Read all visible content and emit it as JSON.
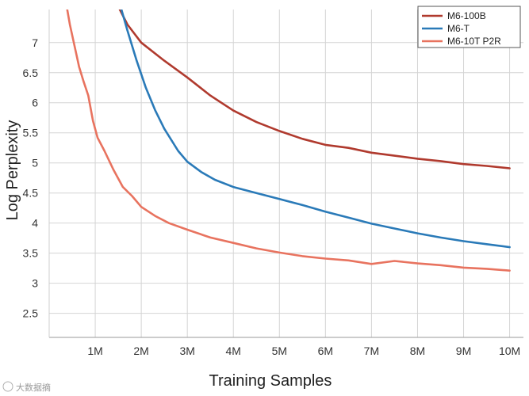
{
  "chart_data": {
    "type": "line",
    "title": "",
    "xlabel": "Training Samples",
    "ylabel": "Log Perplexity",
    "xlim": [
      0,
      10.3
    ],
    "ylim": [
      2.1,
      7.55
    ],
    "grid": true,
    "legend_position": "top-right",
    "x_ticks": [
      1,
      2,
      3,
      4,
      5,
      6,
      7,
      8,
      9,
      10
    ],
    "x_tick_labels": [
      "1M",
      "2M",
      "3M",
      "4M",
      "5M",
      "6M",
      "7M",
      "8M",
      "9M",
      "10M"
    ],
    "y_ticks": [
      2.5,
      3,
      3.5,
      4,
      4.5,
      5,
      5.5,
      6,
      6.5,
      7
    ],
    "y_tick_labels": [
      "2.5",
      "3",
      "3.5",
      "4",
      "4.5",
      "5",
      "5.5",
      "6",
      "6.5",
      "7"
    ],
    "series": [
      {
        "name": "M6-100B",
        "color": "#b03a2e",
        "x": [
          1.5,
          1.7,
          2.0,
          2.5,
          3.0,
          3.5,
          4.0,
          4.5,
          5.0,
          5.5,
          6.0,
          6.5,
          7.0,
          7.5,
          8.0,
          8.5,
          9.0,
          9.5,
          10.0
        ],
        "y": [
          7.6,
          7.3,
          7.0,
          6.7,
          6.42,
          6.12,
          5.87,
          5.68,
          5.53,
          5.4,
          5.3,
          5.25,
          5.17,
          5.12,
          5.07,
          5.03,
          4.98,
          4.95,
          4.91
        ]
      },
      {
        "name": "M6-T",
        "color": "#2a7ab8",
        "x": [
          1.55,
          1.7,
          1.9,
          2.1,
          2.3,
          2.5,
          2.8,
          3.0,
          3.3,
          3.6,
          4.0,
          4.5,
          5.0,
          5.5,
          6.0,
          6.5,
          7.0,
          7.5,
          8.0,
          8.5,
          9.0,
          9.5,
          10.0
        ],
        "y": [
          7.6,
          7.2,
          6.7,
          6.25,
          5.88,
          5.57,
          5.2,
          5.02,
          4.85,
          4.72,
          4.6,
          4.5,
          4.4,
          4.3,
          4.19,
          4.09,
          3.99,
          3.91,
          3.83,
          3.76,
          3.7,
          3.65,
          3.6
        ]
      },
      {
        "name": "M6-10T P2R",
        "color": "#e8735f",
        "x": [
          0.38,
          0.45,
          0.55,
          0.65,
          0.75,
          0.85,
          0.95,
          1.05,
          1.2,
          1.4,
          1.6,
          1.8,
          2.0,
          2.3,
          2.6,
          3.0,
          3.5,
          4.0,
          4.5,
          5.0,
          5.5,
          6.0,
          6.5,
          7.0,
          7.5,
          8.0,
          8.5,
          9.0,
          9.5,
          10.0
        ],
        "y": [
          7.6,
          7.3,
          6.95,
          6.6,
          6.35,
          6.12,
          5.7,
          5.42,
          5.2,
          4.88,
          4.6,
          4.45,
          4.27,
          4.12,
          4.0,
          3.89,
          3.76,
          3.67,
          3.58,
          3.51,
          3.45,
          3.41,
          3.38,
          3.32,
          3.37,
          3.33,
          3.3,
          3.26,
          3.24,
          3.21
        ]
      }
    ]
  },
  "watermark": "大数据摘"
}
